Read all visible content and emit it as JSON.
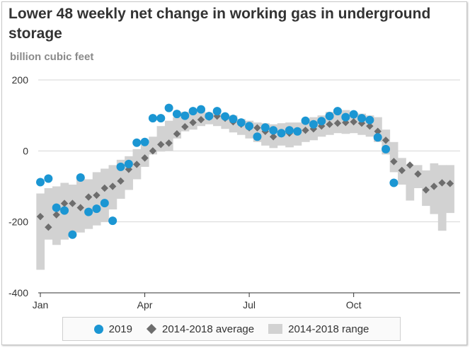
{
  "chart_data": {
    "type": "scatter",
    "title": "Lower 48 weekly net change in working gas in underground storage",
    "subtitle": "billion cubic feet",
    "x_ticks": [
      "Jan",
      "Apr",
      "Jul",
      "Oct"
    ],
    "x_tick_weeks": [
      0,
      13,
      26,
      39
    ],
    "y_ticks": [
      "200",
      "0",
      "-200",
      "-400"
    ],
    "ylim": [
      -400,
      200
    ],
    "grid": true,
    "legend_position": "bottom",
    "series": [
      {
        "name": "2019",
        "color": "#1b96d3",
        "x": [
          0,
          1,
          2,
          3,
          4,
          5,
          6,
          7,
          8,
          9,
          10,
          11,
          12,
          13,
          14,
          15,
          16,
          17,
          18,
          19,
          20,
          21,
          22,
          23,
          24,
          25,
          26,
          27,
          28,
          29,
          30,
          31,
          32,
          33,
          34,
          35,
          36,
          37,
          38,
          39,
          40,
          41,
          42,
          43,
          44
        ],
        "y": [
          -88,
          -78,
          -160,
          -168,
          -236,
          -75,
          -172,
          -163,
          -147,
          -197,
          -45,
          -37,
          23,
          25,
          92,
          92,
          121,
          104,
          99,
          112,
          117,
          98,
          112,
          97,
          90,
          80,
          70,
          40,
          66,
          58,
          50,
          58,
          55,
          85,
          75,
          84,
          98,
          112,
          95,
          103,
          92,
          87,
          38,
          5,
          -90
        ]
      },
      {
        "name": "2014-2018 average",
        "color": "#6d6d6d",
        "x": [
          0,
          1,
          2,
          3,
          4,
          5,
          6,
          7,
          8,
          9,
          10,
          11,
          12,
          13,
          14,
          15,
          16,
          17,
          18,
          19,
          20,
          21,
          22,
          23,
          24,
          25,
          26,
          27,
          28,
          29,
          30,
          31,
          32,
          33,
          34,
          35,
          36,
          37,
          38,
          39,
          40,
          41,
          42,
          43,
          44,
          45,
          46,
          47,
          48,
          49,
          50,
          51
        ],
        "y": [
          -185,
          -215,
          -180,
          -148,
          -148,
          -160,
          -130,
          -125,
          -105,
          -100,
          -85,
          -52,
          -38,
          -20,
          0,
          18,
          22,
          48,
          68,
          80,
          88,
          95,
          98,
          92,
          82,
          75,
          65,
          65,
          55,
          40,
          48,
          50,
          55,
          58,
          62,
          70,
          75,
          78,
          80,
          82,
          78,
          70,
          55,
          30,
          -30,
          -55,
          -40,
          -65,
          -110,
          -100,
          -90,
          -92
        ]
      },
      {
        "name": "2014-2018 range",
        "color": "#d2d2d2",
        "low": [
          -335,
          -250,
          -265,
          -250,
          -230,
          -230,
          -220,
          -210,
          -200,
          -165,
          -135,
          -110,
          -80,
          -45,
          -10,
          -2,
          0,
          35,
          55,
          60,
          70,
          75,
          70,
          62,
          52,
          45,
          35,
          25,
          15,
          8,
          15,
          10,
          15,
          25,
          30,
          40,
          45,
          50,
          48,
          50,
          45,
          40,
          25,
          -10,
          -60,
          -95,
          -140,
          -105,
          -155,
          -178,
          -225,
          -175
        ],
        "high": [
          -120,
          -105,
          -100,
          -90,
          -95,
          -75,
          -80,
          -60,
          -50,
          -40,
          -25,
          -15,
          5,
          18,
          40,
          70,
          85,
          95,
          110,
          118,
          115,
          108,
          105,
          100,
          100,
          90,
          85,
          80,
          78,
          75,
          78,
          80,
          80,
          85,
          95,
          100,
          110,
          118,
          115,
          108,
          105,
          100,
          95,
          60,
          25,
          -20,
          -40,
          -40,
          -55,
          -35,
          -40,
          -40
        ]
      }
    ]
  },
  "legend": {
    "item_2019": "2019",
    "item_avg": "2014-2018 average",
    "item_range": "2014-2018 range"
  }
}
